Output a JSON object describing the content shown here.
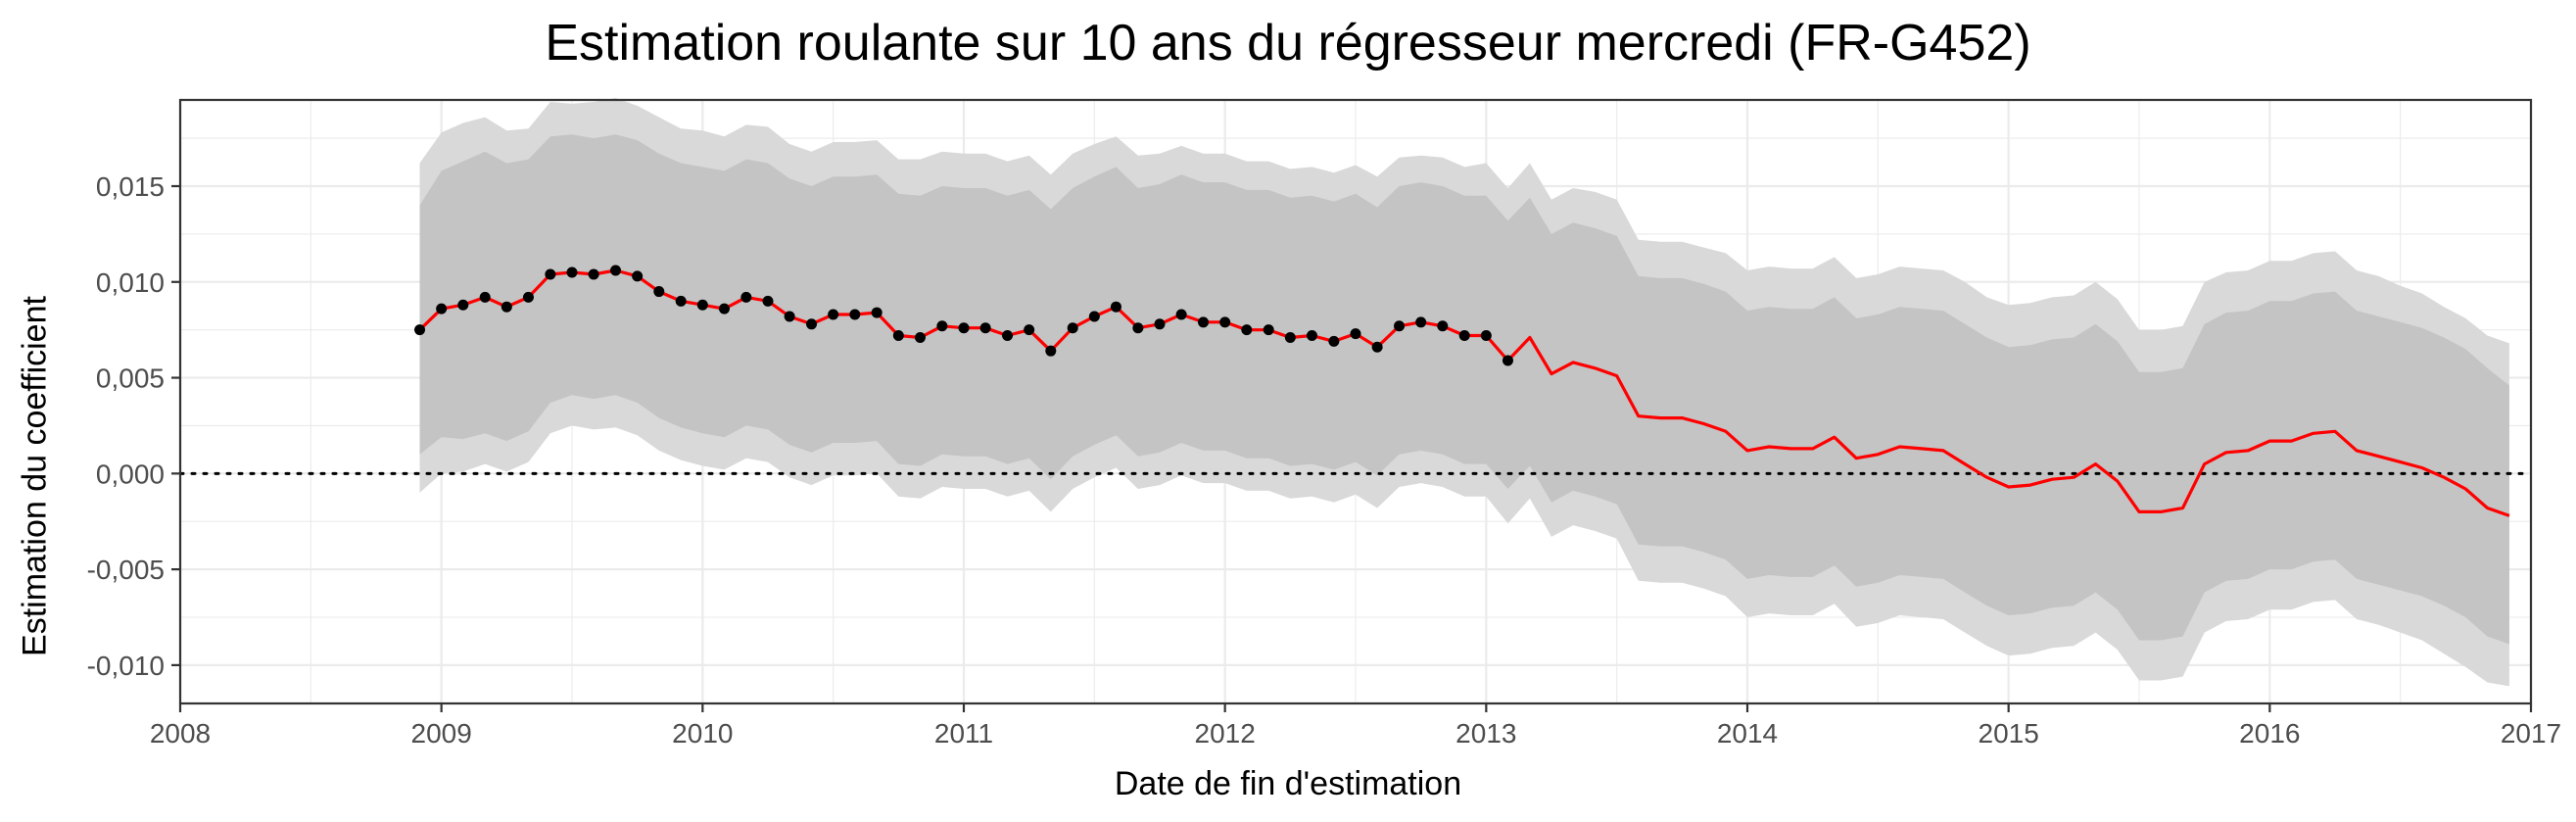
{
  "chart_data": {
    "type": "line",
    "title": "Estimation roulante sur 10 ans du régresseur mercredi (FR-G452)",
    "xlabel": "Date de fin d'estimation",
    "ylabel": "Estimation du coefficient",
    "xlim": [
      2008,
      2017
    ],
    "ylim": [
      -0.012,
      0.0195
    ],
    "x_ticks": [
      2008,
      2009,
      2010,
      2011,
      2012,
      2013,
      2014,
      2015,
      2016,
      2017
    ],
    "x_tick_labels": [
      "2008",
      "2009",
      "2010",
      "2011",
      "2012",
      "2013",
      "2014",
      "2015",
      "2016",
      "2017"
    ],
    "y_ticks": [
      -0.01,
      -0.005,
      0,
      0.005,
      0.01,
      0.015
    ],
    "y_tick_labels": [
      "-0,010",
      "-0,005",
      "0,000",
      "0,005",
      "0,010",
      "0,015"
    ],
    "reference_line": {
      "y": 0,
      "style": "dotted"
    },
    "grid": true,
    "colors": {
      "line": "#ff0000",
      "points": "#000000",
      "band_outer": "#d9d9d9",
      "band_inner": "#c4c4c4",
      "panel_border": "#333333",
      "grid": "#ebebeb"
    },
    "series": [
      {
        "x": [
          2008.917,
          2009.0,
          2009.083,
          2009.167,
          2009.25,
          2009.333,
          2009.417,
          2009.5,
          2009.583,
          2009.667,
          2009.75,
          2009.833,
          2009.917,
          2010.0,
          2010.083,
          2010.167,
          2010.25,
          2010.333,
          2010.417,
          2010.5,
          2010.583,
          2010.667,
          2010.75,
          2010.833,
          2010.917,
          2011.0,
          2011.083,
          2011.167,
          2011.25,
          2011.333,
          2011.417,
          2011.5,
          2011.583,
          2011.667,
          2011.75,
          2011.833,
          2011.917,
          2012.0,
          2012.083,
          2012.167,
          2012.25,
          2012.333,
          2012.417,
          2012.5,
          2012.583,
          2012.667,
          2012.75,
          2012.833,
          2012.917,
          2013.0,
          2013.083,
          2013.167,
          2013.25,
          2013.333,
          2013.417,
          2013.5,
          2013.583,
          2013.667,
          2013.75,
          2013.833,
          2013.917,
          2014.0,
          2014.083,
          2014.167,
          2014.25,
          2014.333,
          2014.417,
          2014.5,
          2014.583,
          2014.667,
          2014.75,
          2014.833,
          2014.917,
          2015.0,
          2015.083,
          2015.167,
          2015.25,
          2015.333,
          2015.417,
          2015.5,
          2015.583,
          2015.667,
          2015.75,
          2015.833,
          2015.917,
          2016.0,
          2016.083,
          2016.167,
          2016.25,
          2016.333,
          2016.417,
          2016.5,
          2016.583,
          2016.667,
          2016.75,
          2016.833,
          2016.917
        ],
        "values": [
          0.0075,
          0.0086,
          0.0088,
          0.0092,
          0.0087,
          0.0092,
          0.0104,
          0.0105,
          0.0104,
          0.0106,
          0.0103,
          0.0095,
          0.009,
          0.0088,
          0.0086,
          0.0092,
          0.009,
          0.0082,
          0.0078,
          0.0083,
          0.0083,
          0.0084,
          0.0072,
          0.0071,
          0.0077,
          0.0076,
          0.0076,
          0.0072,
          0.0075,
          0.0064,
          0.0076,
          0.0082,
          0.0087,
          0.0076,
          0.0078,
          0.0083,
          0.0079,
          0.0079,
          0.0075,
          0.0075,
          0.0071,
          0.0072,
          0.0069,
          0.0073,
          0.0066,
          0.0077,
          0.0079,
          0.0077,
          0.0072,
          0.0072,
          0.0059,
          0.0071,
          0.0052,
          0.0058,
          0.0055,
          0.0051,
          0.003,
          0.0029,
          0.0029,
          0.0026,
          0.0022,
          0.0012,
          0.0014,
          0.0013,
          0.0013,
          0.0019,
          0.0008,
          0.001,
          0.0014,
          0.0013,
          0.0012,
          0.0005,
          -0.0002,
          -0.0007,
          -0.0006,
          -0.0003,
          -0.0002,
          0.0005,
          -0.0004,
          -0.002,
          -0.002,
          -0.0018,
          0.0005,
          0.0011,
          0.0012,
          0.0017,
          0.0017,
          0.0021,
          0.0022,
          0.0012,
          0.0009,
          0.0006,
          0.0003,
          -0.0002,
          -0.0008,
          -0.0018,
          -0.0022
        ],
        "points_shown": 51,
        "inner_upper": [
          0.014,
          0.0158,
          0.0163,
          0.0168,
          0.0162,
          0.0164,
          0.0176,
          0.0177,
          0.0175,
          0.0177,
          0.0174,
          0.0167,
          0.0162,
          0.016,
          0.0158,
          0.0164,
          0.0162,
          0.0154,
          0.015,
          0.0155,
          0.0155,
          0.0156,
          0.0146,
          0.0145,
          0.015,
          0.0149,
          0.0149,
          0.0145,
          0.0148,
          0.0138,
          0.0149,
          0.0155,
          0.016,
          0.0149,
          0.0151,
          0.0156,
          0.0152,
          0.0152,
          0.0148,
          0.0148,
          0.0144,
          0.0145,
          0.0142,
          0.0146,
          0.0139,
          0.015,
          0.0152,
          0.015,
          0.0145,
          0.0145,
          0.0132,
          0.0144,
          0.0125,
          0.0131,
          0.0128,
          0.0124,
          0.0103,
          0.0102,
          0.0102,
          0.0099,
          0.0095,
          0.0085,
          0.0087,
          0.0086,
          0.0086,
          0.0092,
          0.0081,
          0.0083,
          0.0087,
          0.0086,
          0.0085,
          0.0078,
          0.0071,
          0.0066,
          0.0067,
          0.007,
          0.0071,
          0.0078,
          0.0069,
          0.0053,
          0.0053,
          0.0055,
          0.0078,
          0.0084,
          0.0085,
          0.009,
          0.009,
          0.0094,
          0.0095,
          0.0085,
          0.0082,
          0.0079,
          0.0076,
          0.0071,
          0.0065,
          0.0055,
          0.0046
        ],
        "inner_lower": [
          0.001,
          0.0019,
          0.0018,
          0.0021,
          0.0017,
          0.0022,
          0.0037,
          0.0041,
          0.0039,
          0.0041,
          0.0037,
          0.0029,
          0.0024,
          0.0021,
          0.0019,
          0.0025,
          0.0023,
          0.0015,
          0.0011,
          0.0016,
          0.0016,
          0.0017,
          0.0005,
          0.0004,
          0.001,
          0.0009,
          0.0009,
          0.0005,
          0.0008,
          -0.0003,
          0.0009,
          0.0015,
          0.002,
          0.0009,
          0.0011,
          0.0016,
          0.0012,
          0.0012,
          0.0008,
          0.0008,
          0.0004,
          0.0005,
          0.0002,
          0.0006,
          -0.0001,
          0.001,
          0.0012,
          0.001,
          0.0005,
          0.0005,
          -0.0008,
          0.0004,
          -0.0015,
          -0.0009,
          -0.0012,
          -0.0016,
          -0.0037,
          -0.0038,
          -0.0038,
          -0.0041,
          -0.0045,
          -0.0055,
          -0.0053,
          -0.0054,
          -0.0054,
          -0.0048,
          -0.0059,
          -0.0057,
          -0.0053,
          -0.0054,
          -0.0055,
          -0.0062,
          -0.0069,
          -0.0074,
          -0.0073,
          -0.007,
          -0.0069,
          -0.0062,
          -0.0071,
          -0.0087,
          -0.0087,
          -0.0085,
          -0.0062,
          -0.0056,
          -0.0055,
          -0.005,
          -0.005,
          -0.0046,
          -0.0045,
          -0.0055,
          -0.0058,
          -0.0061,
          -0.0064,
          -0.0069,
          -0.0075,
          -0.0085,
          -0.0089
        ],
        "outer_upper": [
          0.0162,
          0.0178,
          0.0183,
          0.0186,
          0.0179,
          0.018,
          0.0194,
          0.0193,
          0.0194,
          0.0196,
          0.0192,
          0.0186,
          0.018,
          0.0179,
          0.0176,
          0.0182,
          0.0181,
          0.0172,
          0.0168,
          0.0173,
          0.0173,
          0.0174,
          0.0164,
          0.0164,
          0.0168,
          0.0167,
          0.0167,
          0.0163,
          0.0166,
          0.0156,
          0.0167,
          0.0172,
          0.0176,
          0.0166,
          0.0167,
          0.0171,
          0.0167,
          0.0167,
          0.0163,
          0.0163,
          0.0159,
          0.016,
          0.0157,
          0.0161,
          0.0155,
          0.0165,
          0.0166,
          0.0165,
          0.016,
          0.0162,
          0.0149,
          0.0162,
          0.0143,
          0.0149,
          0.0147,
          0.0143,
          0.0122,
          0.0121,
          0.0121,
          0.0118,
          0.0115,
          0.0106,
          0.0108,
          0.0107,
          0.0107,
          0.0113,
          0.0102,
          0.0104,
          0.0108,
          0.0107,
          0.0106,
          0.01,
          0.0092,
          0.0088,
          0.0089,
          0.0092,
          0.0093,
          0.01,
          0.0091,
          0.0075,
          0.0075,
          0.0077,
          0.01,
          0.0105,
          0.0106,
          0.0111,
          0.0111,
          0.0115,
          0.0116,
          0.0106,
          0.0103,
          0.0098,
          0.0094,
          0.0087,
          0.0081,
          0.0072,
          0.0068
        ],
        "outer_lower": [
          -0.001,
          0.0,
          0.0001,
          0.0005,
          0.0001,
          0.0006,
          0.0021,
          0.0025,
          0.0023,
          0.0024,
          0.002,
          0.0012,
          0.0007,
          0.0004,
          0.0002,
          0.0008,
          0.0006,
          -0.0002,
          -0.0006,
          -0.0001,
          -0.0001,
          0.0,
          -0.0012,
          -0.0013,
          -0.0007,
          -0.0008,
          -0.0008,
          -0.0012,
          -0.0009,
          -0.002,
          -0.0008,
          -0.0002,
          0.0003,
          -0.0008,
          -0.0006,
          -0.0001,
          -0.0005,
          -0.0005,
          -0.0009,
          -0.0009,
          -0.0013,
          -0.0012,
          -0.0015,
          -0.0011,
          -0.0018,
          -0.0007,
          -0.0005,
          -0.0007,
          -0.0012,
          -0.0012,
          -0.0026,
          -0.0013,
          -0.0033,
          -0.0027,
          -0.003,
          -0.0034,
          -0.0056,
          -0.0057,
          -0.0057,
          -0.006,
          -0.0064,
          -0.0075,
          -0.0073,
          -0.0074,
          -0.0074,
          -0.0068,
          -0.008,
          -0.0078,
          -0.0074,
          -0.0075,
          -0.0076,
          -0.0083,
          -0.009,
          -0.0095,
          -0.0094,
          -0.0091,
          -0.009,
          -0.0083,
          -0.0092,
          -0.0108,
          -0.0108,
          -0.0106,
          -0.0083,
          -0.0077,
          -0.0076,
          -0.0071,
          -0.0071,
          -0.0067,
          -0.0066,
          -0.0076,
          -0.0079,
          -0.0083,
          -0.0087,
          -0.0094,
          -0.0101,
          -0.0109,
          -0.0111
        ]
      }
    ]
  }
}
